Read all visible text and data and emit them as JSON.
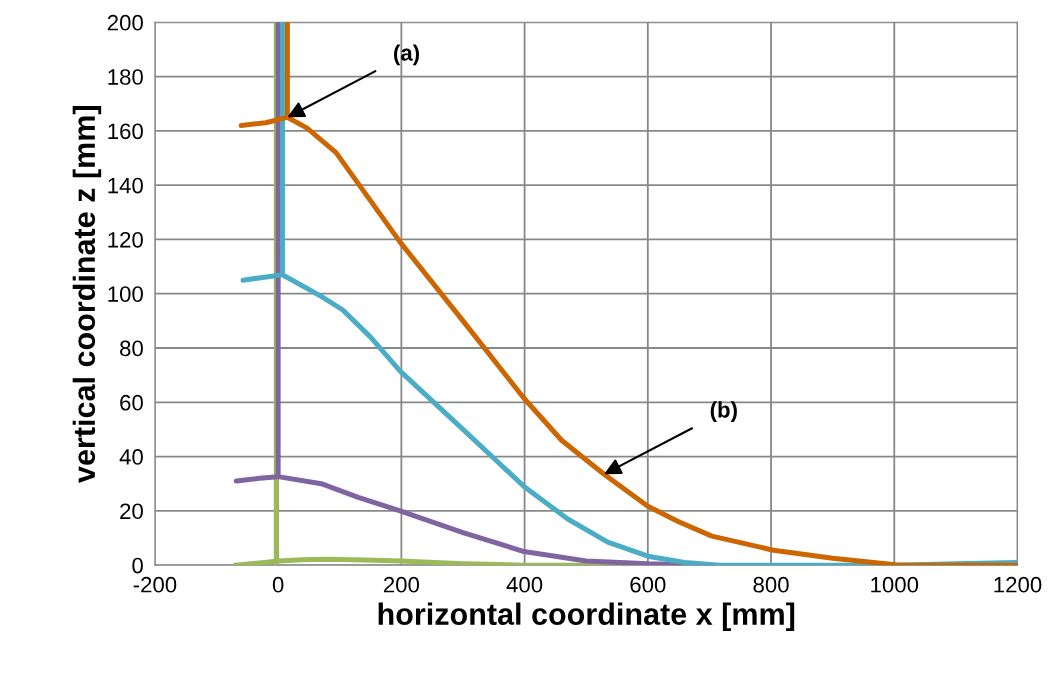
{
  "chart_data": {
    "type": "line",
    "xlabel": "horizontal coordinate x [mm]",
    "ylabel": "vertical coordinate z [mm]",
    "xlim": [
      -200,
      1200
    ],
    "xticks": [
      -200,
      0,
      200,
      400,
      600,
      800,
      1000,
      1200
    ],
    "ylim": [
      0,
      200
    ],
    "yticks": [
      0,
      20,
      40,
      60,
      80,
      100,
      120,
      140,
      160,
      180,
      200
    ],
    "grid": true,
    "marker": "none",
    "line_style": "solid",
    "series": [
      {
        "color": "#9bbb59",
        "x": [
          -3,
          -3,
          null,
          -70,
          -30,
          0,
          40,
          80,
          140,
          200,
          300,
          400,
          500,
          600,
          700
        ],
        "values": [
          200,
          0,
          null,
          0,
          0.8,
          1.5,
          2,
          2.2,
          1.9,
          1.5,
          0.5,
          0,
          0,
          0,
          0
        ]
      },
      {
        "color": "#8064a2",
        "x": [
          -68,
          -30,
          0,
          0,
          null,
          0,
          70,
          130,
          198,
          300,
          399,
          500,
          600,
          704
        ],
        "values": [
          31,
          32,
          32.6,
          200,
          null,
          32.6,
          30,
          25,
          20,
          12,
          5,
          1.5,
          0.5,
          0
        ]
      },
      {
        "color": "#4bacc6",
        "x": [
          -57,
          -25,
          7,
          7,
          null,
          7,
          70,
          105,
          150,
          198,
          300,
          399,
          470,
          535,
          600,
          660,
          717,
          800,
          900,
          1000,
          1100,
          1200
        ],
        "values": [
          105,
          106,
          107,
          200,
          null,
          107,
          99,
          94,
          84,
          71.5,
          50,
          29,
          17,
          8.5,
          3.3,
          1,
          0,
          0,
          0,
          0,
          0.5,
          1
        ]
      },
      {
        "color": "#cc6600",
        "x": [
          -60,
          -20,
          15,
          15,
          null,
          15,
          47,
          94,
          135,
          198,
          300,
          399,
          460,
          529,
          600,
          650,
          704,
          804,
          900,
          1009,
          1100,
          1200
        ],
        "values": [
          162,
          163,
          165,
          200,
          null,
          165,
          161,
          152,
          139,
          119,
          90,
          61.5,
          46,
          33.5,
          21.7,
          16,
          10.7,
          5.5,
          2.5,
          0,
          0,
          0
        ]
      }
    ],
    "annotations": [
      {
        "text": "(a)",
        "x": 15,
        "y": 165
      },
      {
        "text": "(b)",
        "x": 529,
        "y": 33.5
      }
    ]
  }
}
